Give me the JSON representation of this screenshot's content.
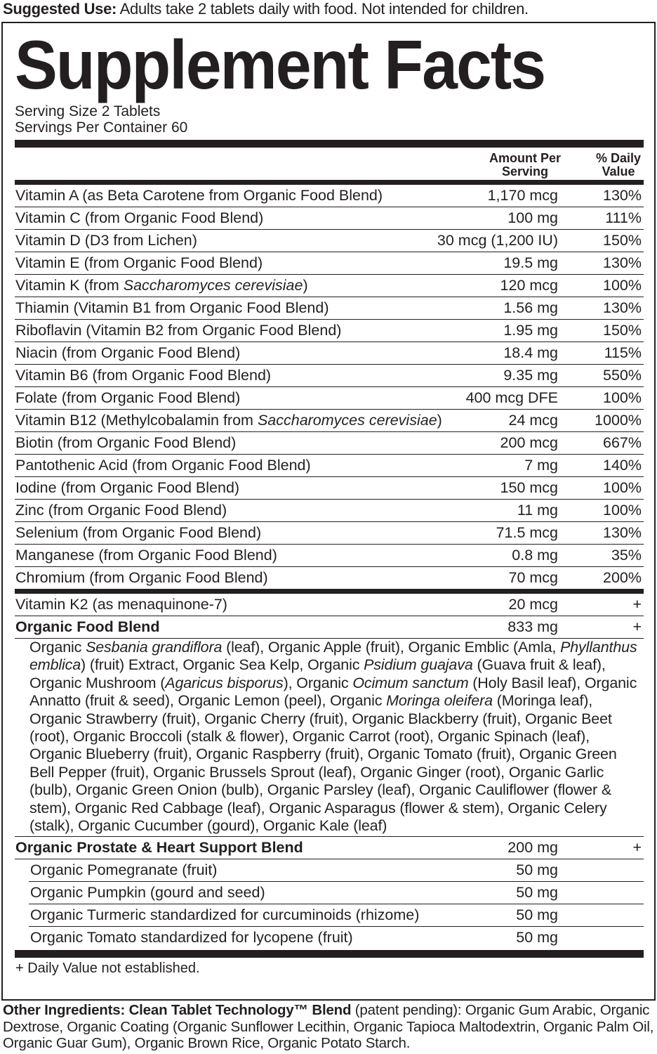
{
  "suggested_use": {
    "label": "Suggested Use:",
    "text": " Adults take 2 tablets daily with food. Not intended for children."
  },
  "title": "Supplement Facts",
  "serving_size": "Serving Size 2 Tablets",
  "servings_per_container": "Servings Per Container 60",
  "columns": {
    "amount_line1": "Amount Per",
    "amount_line2": "Serving",
    "dv_line1": "% Daily",
    "dv_line2": "Value"
  },
  "nutrients": [
    {
      "name": [
        {
          "t": "Vitamin A (as Beta Carotene from Organic Food Blend)"
        }
      ],
      "amount": "1,170 mcg",
      "dv": "130%"
    },
    {
      "name": [
        {
          "t": "Vitamin C (from Organic Food Blend)"
        }
      ],
      "amount": "100 mg",
      "dv": "111%"
    },
    {
      "name": [
        {
          "t": "Vitamin D (D3 from Lichen)"
        }
      ],
      "amount": "30 mcg (1,200 IU)",
      "dv": "150%"
    },
    {
      "name": [
        {
          "t": "Vitamin E (from Organic Food Blend)"
        }
      ],
      "amount": "19.5 mg",
      "dv": "130%"
    },
    {
      "name": [
        {
          "t": "Vitamin K (from "
        },
        {
          "t": "Saccharomyces cerevisiae",
          "i": true
        },
        {
          "t": ")"
        }
      ],
      "amount": "120 mcg",
      "dv": "100%"
    },
    {
      "name": [
        {
          "t": "Thiamin (Vitamin B1 from Organic Food Blend)"
        }
      ],
      "amount": "1.56 mg",
      "dv": "130%"
    },
    {
      "name": [
        {
          "t": "Riboflavin (Vitamin B2 from Organic Food Blend)"
        }
      ],
      "amount": "1.95 mg",
      "dv": "150%"
    },
    {
      "name": [
        {
          "t": "Niacin (from Organic Food Blend)"
        }
      ],
      "amount": "18.4 mg",
      "dv": "115%"
    },
    {
      "name": [
        {
          "t": "Vitamin B6 (from Organic Food Blend)"
        }
      ],
      "amount": "9.35 mg",
      "dv": "550%"
    },
    {
      "name": [
        {
          "t": "Folate (from Organic Food Blend)"
        }
      ],
      "amount": "400 mcg DFE",
      "dv": "100%"
    },
    {
      "name": [
        {
          "t": "Vitamin B12 (Methylcobalamin from "
        },
        {
          "t": "Saccharomyces cerevisiae",
          "i": true
        },
        {
          "t": ")"
        }
      ],
      "amount": "24 mcg",
      "dv": "1000%"
    },
    {
      "name": [
        {
          "t": "Biotin (from Organic Food Blend)"
        }
      ],
      "amount": "200 mcg",
      "dv": "667%"
    },
    {
      "name": [
        {
          "t": "Pantothenic Acid (from Organic Food Blend)"
        }
      ],
      "amount": "7 mg",
      "dv": "140%"
    },
    {
      "name": [
        {
          "t": "Iodine (from Organic Food Blend)"
        }
      ],
      "amount": "150 mcg",
      "dv": "100%"
    },
    {
      "name": [
        {
          "t": "Zinc (from Organic Food Blend)"
        }
      ],
      "amount": "11 mg",
      "dv": "100%"
    },
    {
      "name": [
        {
          "t": "Selenium (from Organic Food Blend)"
        }
      ],
      "amount": "71.5 mcg",
      "dv": "130%"
    },
    {
      "name": [
        {
          "t": "Manganese (from Organic Food Blend)"
        }
      ],
      "amount": "0.8 mg",
      "dv": "35%"
    },
    {
      "name": [
        {
          "t": "Chromium (from Organic Food Blend)"
        }
      ],
      "amount": "70 mcg",
      "dv": "200%"
    }
  ],
  "k2": {
    "name": "Vitamin K2 (as menaquinone-7)",
    "amount": "20 mcg",
    "dv": "+"
  },
  "food_blend": {
    "name": "Organic Food Blend",
    "amount": "833 mg",
    "dv": "+",
    "ingredients": [
      {
        "t": "Organic "
      },
      {
        "t": "Sesbania grandiflora",
        "i": true
      },
      {
        "t": " (leaf), Organic Apple (fruit), Organic Emblic (Amla, "
      },
      {
        "t": "Phyllanthus emblica",
        "i": true
      },
      {
        "t": ") (fruit) Extract, Organic Sea Kelp, Organic "
      },
      {
        "t": "Psidium guajava",
        "i": true
      },
      {
        "t": " (Guava fruit & leaf), Organic Mushroom ("
      },
      {
        "t": "Agaricus bisporus",
        "i": true
      },
      {
        "t": "), Organic "
      },
      {
        "t": "Ocimum sanctum",
        "i": true
      },
      {
        "t": " (Holy Basil leaf), Organic Annatto (fruit & seed), Organic Lemon (peel), Organic "
      },
      {
        "t": "Moringa oleifera",
        "i": true
      },
      {
        "t": " (Moringa leaf), Organic Strawberry (fruit), Organic Cherry (fruit), Organic Blackberry (fruit), Organic Beet (root), Organic Broccoli (stalk & flower), Organic Carrot (root), Organic Spinach (leaf), Organic Blueberry (fruit), Organic Raspberry (fruit), Organic Tomato (fruit), Organic Green Bell Pepper (fruit), Organic Brussels Sprout (leaf), Organic Ginger (root), Organic Garlic (bulb), Organic Green Onion (bulb), Organic Parsley (leaf), Organic Cauliflower (flower & stem), Organic Red Cabbage (leaf), Organic Asparagus (flower & stem), Organic Celery (stalk), Organic Cucumber (gourd), Organic Kale (leaf)"
      }
    ]
  },
  "prostate_blend": {
    "name": "Organic Prostate & Heart Support Blend",
    "amount": "200 mg",
    "dv": "+",
    "items": [
      {
        "name": "Organic Pomegranate (fruit)",
        "amount": "50 mg"
      },
      {
        "name": "Organic Pumpkin (gourd and seed)",
        "amount": "50 mg"
      },
      {
        "name": "Organic Turmeric standardized for curcuminoids (rhizome)",
        "amount": "50 mg"
      },
      {
        "name": "Organic Tomato standardized for lycopene (fruit)",
        "amount": "50 mg"
      }
    ]
  },
  "footnote": "+ Daily Value not established.",
  "other_ingredients": {
    "label": "Other Ingredients: Clean Tablet Technology™ Blend",
    "text": " (patent pending): Organic Gum Arabic, Organic Dextrose, Organic Coating (Organic Sunflower Lecithin, Organic Tapioca Maltodextrin, Organic Palm Oil, Organic Guar Gum), Organic Brown Rice, Organic Potato Starch."
  }
}
